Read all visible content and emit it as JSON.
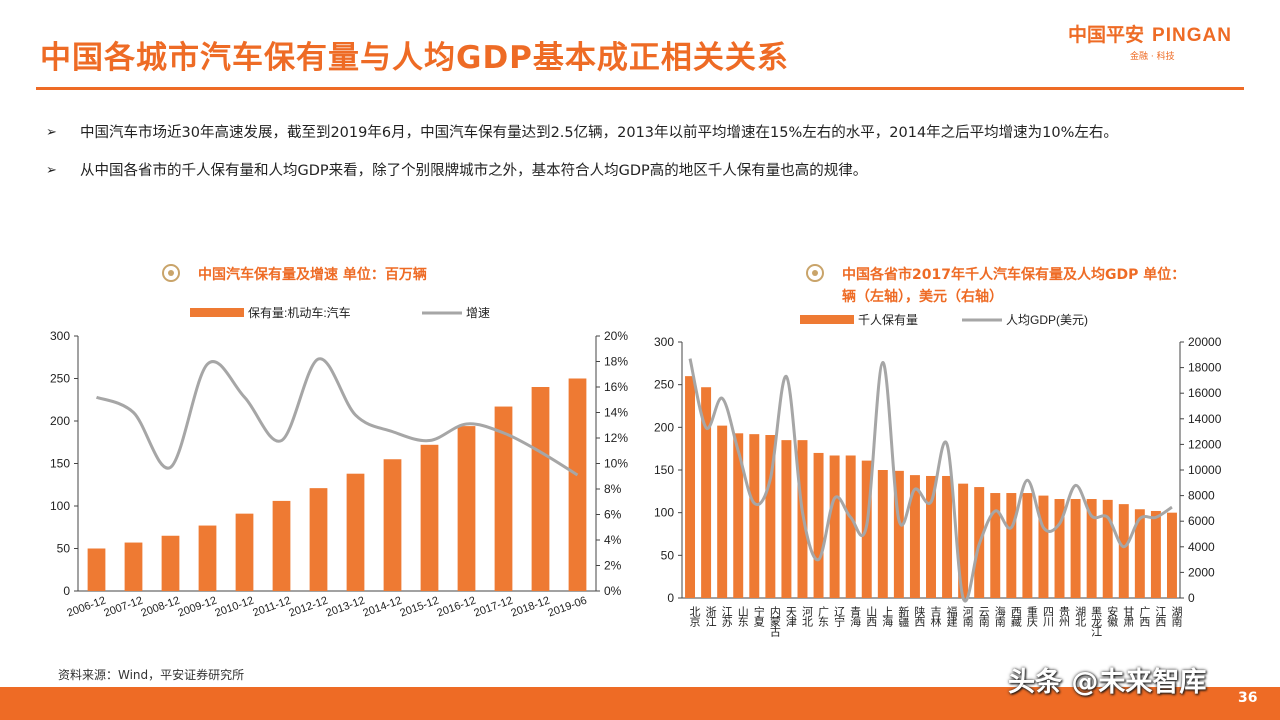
{
  "title": "中国各城市汽车保有量与人均GDP基本成正相关关系",
  "logo": {
    "cn": "中国平安",
    "en": "PINGAN",
    "sub": "金融 · 科技"
  },
  "bullets": [
    {
      "mark": "➢",
      "text": "中国汽车市场近30年高速发展，截至到2019年6月，中国汽车保有量达到2.5亿辆，2013年以前平均增速在15%左右的水平，2014年之后平均增速为10%左右。"
    },
    {
      "mark": "➢",
      "text": "从中国各省市的千人保有量和人均GDP来看，除了个别限牌城市之外，基本符合人均GDP高的地区千人保有量也高的规律。"
    }
  ],
  "chart1_heading": "中国汽车保有量及增速   单位：百万辆",
  "chart2_heading": "中国各省市2017年千人汽车保有量及人均GDP  单位：辆（左轴），美元（右轴）",
  "source": "资料来源：Wind，平安证券研究所",
  "watermark": "头条 @未来智库",
  "page_number": "36",
  "colors": {
    "accent": "#ee6b25",
    "bar": "#ee7a33",
    "line": "#a6a6a6"
  },
  "chart_data": [
    {
      "type": "bar",
      "title": "中国汽车保有量及增速   单位：百万辆",
      "legend": [
        "保有量:机动车:汽车",
        "增速"
      ],
      "legend_position": "top",
      "categories": [
        "2006-12",
        "2007-12",
        "2008-12",
        "2009-12",
        "2010-12",
        "2011-12",
        "2012-12",
        "2013-12",
        "2014-12",
        "2015-12",
        "2016-12",
        "2017-12",
        "2018-12",
        "2019-06"
      ],
      "series": [
        {
          "name": "保有量:机动车:汽车",
          "type": "bar",
          "axis": "left",
          "values": [
            50,
            57,
            65,
            77,
            91,
            106,
            121,
            138,
            155,
            172,
            194,
            217,
            240,
            250
          ]
        },
        {
          "name": "增速",
          "type": "line",
          "axis": "right",
          "values": [
            15.2,
            14.0,
            9.7,
            17.8,
            15.2,
            11.8,
            18.2,
            13.8,
            12.5,
            11.8,
            13.1,
            12.4,
            10.9,
            9.1
          ]
        }
      ],
      "ylim_left": [
        0,
        300
      ],
      "yticks_left": [
        "0",
        "50",
        "100",
        "150",
        "200",
        "250",
        "300"
      ],
      "ylim_right": [
        0,
        20
      ],
      "yticks_right": [
        "0%",
        "2%",
        "4%",
        "6%",
        "8%",
        "10%",
        "12%",
        "14%",
        "16%",
        "18%",
        "20%"
      ],
      "grid": false
    },
    {
      "type": "bar",
      "title": "中国各省市2017年千人汽车保有量及人均GDP  单位：辆（左轴），美元（右轴）",
      "legend": [
        "千人保有量",
        "人均GDP(美元)"
      ],
      "legend_position": "top",
      "categories": [
        "北京",
        "浙江",
        "江苏",
        "山东",
        "宁夏",
        "内蒙古",
        "天津",
        "河北",
        "广东",
        "辽宁",
        "青海",
        "山西",
        "上海",
        "新疆",
        "陕西",
        "吉林",
        "福建",
        "河南",
        "云南",
        "海南",
        "西藏",
        "重庆",
        "四川",
        "贵州",
        "湖北",
        "黑龙江",
        "安徽",
        "甘肃",
        "广西",
        "江西",
        "湖南"
      ],
      "series": [
        {
          "name": "千人保有量",
          "type": "bar",
          "axis": "left",
          "values": [
            260,
            247,
            202,
            193,
            192,
            191,
            185,
            185,
            170,
            167,
            167,
            161,
            150,
            149,
            144,
            143,
            143,
            134,
            130,
            123,
            123,
            123,
            120,
            116,
            116,
            116,
            115,
            110,
            104,
            102,
            100
          ]
        },
        {
          "name": "人均GDP(美元)",
          "type": "line",
          "axis": "right",
          "values": [
            18700,
            13300,
            15600,
            11500,
            7400,
            9300,
            17300,
            6700,
            3000,
            7800,
            6300,
            5700,
            18400,
            6100,
            8500,
            7500,
            12000,
            0,
            4200,
            6800,
            5500,
            9200,
            5500,
            5800,
            8800,
            6400,
            6300,
            4000,
            6200,
            6300,
            7100
          ]
        }
      ],
      "ylim_left": [
        0,
        300
      ],
      "yticks_left": [
        "0",
        "50",
        "100",
        "150",
        "200",
        "250",
        "300"
      ],
      "ylim_right": [
        0,
        20000
      ],
      "yticks_right": [
        "0",
        "2000",
        "4000",
        "6000",
        "8000",
        "10000",
        "12000",
        "14000",
        "16000",
        "18000",
        "20000"
      ],
      "grid": false
    }
  ]
}
